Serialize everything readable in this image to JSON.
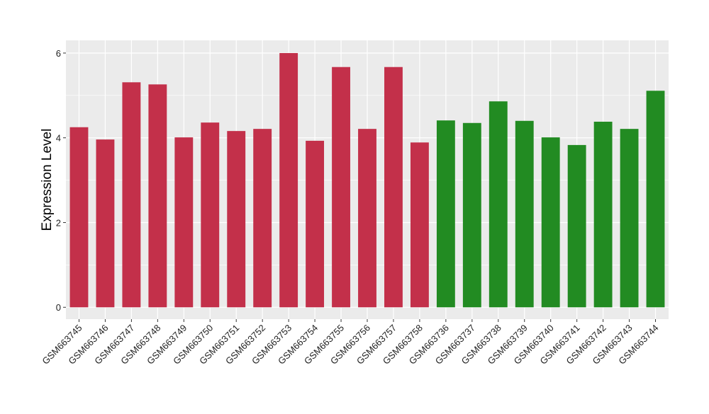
{
  "chart_data": {
    "type": "bar",
    "title": "",
    "xlabel": "",
    "ylabel": "Expression Level",
    "ylim": [
      -0.28,
      6.3
    ],
    "yticks": [
      0,
      2,
      4,
      6
    ],
    "grid": true,
    "categories": [
      "GSM663745",
      "GSM663746",
      "GSM663747",
      "GSM663748",
      "GSM663749",
      "GSM663750",
      "GSM663751",
      "GSM663752",
      "GSM663753",
      "GSM663754",
      "GSM663755",
      "GSM663756",
      "GSM663757",
      "GSM663758",
      "GSM663736",
      "GSM663737",
      "GSM663738",
      "GSM663739",
      "GSM663740",
      "GSM663741",
      "GSM663742",
      "GSM663743",
      "GSM663744"
    ],
    "values": [
      4.25,
      3.96,
      5.31,
      5.26,
      4.01,
      4.36,
      4.16,
      4.21,
      6.0,
      3.93,
      5.67,
      4.21,
      5.67,
      3.89,
      4.41,
      4.35,
      4.86,
      4.4,
      4.01,
      3.83,
      4.38,
      4.21,
      5.11
    ],
    "groups": [
      "red",
      "red",
      "red",
      "red",
      "red",
      "red",
      "red",
      "red",
      "red",
      "red",
      "red",
      "red",
      "red",
      "red",
      "green",
      "green",
      "green",
      "green",
      "green",
      "green",
      "green",
      "green",
      "green"
    ],
    "colors": {
      "red": "#C3304A",
      "green": "#228B22",
      "panel": "#EBEBEB",
      "grid": "#FFFFFF"
    }
  }
}
